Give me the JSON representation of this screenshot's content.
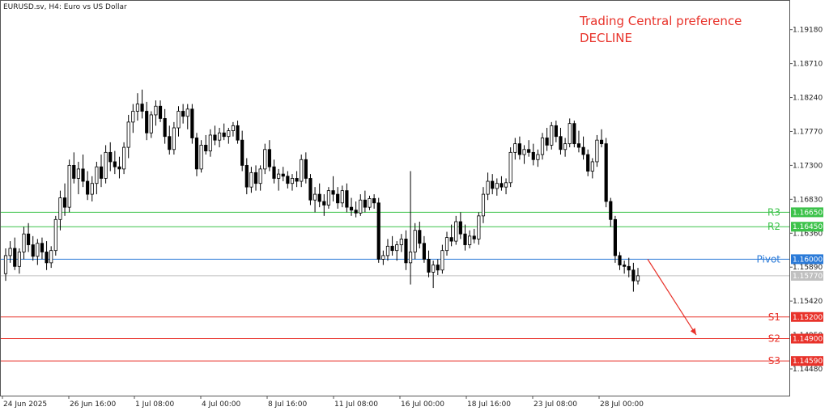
{
  "header": {
    "symbol_info": "EURUSD.sv, H4:  Euro vs US Dollar"
  },
  "preference": {
    "line1": "Trading Central preference",
    "line2": "DECLINE",
    "color": "#e8322a"
  },
  "chart_data": {
    "type": "candlestick",
    "timeframe": "H4",
    "symbol": "EURUSD.sv",
    "ylim": [
      1.1411,
      1.1958
    ],
    "y_ticks": [
      "1.19180",
      "1.18710",
      "1.18240",
      "1.17770",
      "1.17300",
      "1.16830",
      "1.16360",
      "1.15890",
      "1.15420",
      "1.14950",
      "1.14480"
    ],
    "x_ticks": [
      "24 Jun 2025",
      "26 Jun 16:00",
      "1 Jul 08:00",
      "4 Jul 00:00",
      "8 Jul 16:00",
      "11 Jul 08:00",
      "16 Jul 00:00",
      "18 Jul 16:00",
      "23 Jul 08:00",
      "28 Jul 00:00"
    ],
    "current_price": {
      "value": 1.1577,
      "tag": "1.15770",
      "color": "#c0c0c0"
    },
    "levels": [
      {
        "name": "R3",
        "value": 1.1665,
        "tag": "1.16650",
        "color": "#3cc24a"
      },
      {
        "name": "R2",
        "value": 1.1645,
        "tag": "1.16450",
        "color": "#3cc24a"
      },
      {
        "name": "Pivot",
        "value": 1.16,
        "tag": "1.16000",
        "color": "#2a7ad8"
      },
      {
        "name": "S1",
        "value": 1.152,
        "tag": "1.15200",
        "color": "#e8322a"
      },
      {
        "name": "S2",
        "value": 1.149,
        "tag": "1.14900",
        "color": "#e8322a"
      },
      {
        "name": "S3",
        "value": 1.1459,
        "tag": "1.14590",
        "color": "#e8322a"
      }
    ],
    "projection": {
      "from": 1.16,
      "to": 1.1495,
      "color": "#e8322a"
    },
    "ohlc": [
      [
        1.158,
        1.1615,
        1.157,
        1.1605
      ],
      [
        1.1605,
        1.1625,
        1.1595,
        1.1615
      ],
      [
        1.1615,
        1.163,
        1.1585,
        1.159
      ],
      [
        1.159,
        1.1615,
        1.158,
        1.161
      ],
      [
        1.161,
        1.1645,
        1.16,
        1.1635
      ],
      [
        1.1635,
        1.165,
        1.161,
        1.162
      ],
      [
        1.162,
        1.1632,
        1.1598,
        1.1604
      ],
      [
        1.1604,
        1.1628,
        1.1592,
        1.1622
      ],
      [
        1.1622,
        1.163,
        1.16,
        1.161
      ],
      [
        1.161,
        1.1625,
        1.1585,
        1.1595
      ],
      [
        1.1595,
        1.1618,
        1.1588,
        1.1612
      ],
      [
        1.1612,
        1.166,
        1.1605,
        1.1655
      ],
      [
        1.1655,
        1.1695,
        1.164,
        1.1685
      ],
      [
        1.1685,
        1.1705,
        1.166,
        1.1672
      ],
      [
        1.1672,
        1.1738,
        1.1665,
        1.173
      ],
      [
        1.173,
        1.1748,
        1.1705,
        1.1712
      ],
      [
        1.1712,
        1.1735,
        1.169,
        1.1725
      ],
      [
        1.1725,
        1.1745,
        1.17,
        1.1708
      ],
      [
        1.1708,
        1.1722,
        1.1682,
        1.169
      ],
      [
        1.169,
        1.1715,
        1.168,
        1.1705
      ],
      [
        1.1705,
        1.1735,
        1.169,
        1.1728
      ],
      [
        1.1728,
        1.1745,
        1.17,
        1.1712
      ],
      [
        1.1712,
        1.1758,
        1.1705,
        1.1748
      ],
      [
        1.1748,
        1.1762,
        1.1722,
        1.1735
      ],
      [
        1.1735,
        1.175,
        1.1718,
        1.1728
      ],
      [
        1.1728,
        1.1742,
        1.1712,
        1.1725
      ],
      [
        1.1725,
        1.1762,
        1.1718,
        1.1755
      ],
      [
        1.1755,
        1.18,
        1.174,
        1.179
      ],
      [
        1.179,
        1.1815,
        1.1775,
        1.1805
      ],
      [
        1.1805,
        1.183,
        1.1792,
        1.1815
      ],
      [
        1.1815,
        1.1835,
        1.1795,
        1.1805
      ],
      [
        1.1805,
        1.1818,
        1.1765,
        1.1775
      ],
      [
        1.1775,
        1.1805,
        1.1768,
        1.18
      ],
      [
        1.18,
        1.182,
        1.1785,
        1.1812
      ],
      [
        1.1812,
        1.182,
        1.179,
        1.1795
      ],
      [
        1.1795,
        1.1808,
        1.176,
        1.177
      ],
      [
        1.177,
        1.1785,
        1.1745,
        1.1752
      ],
      [
        1.1752,
        1.179,
        1.1745,
        1.1782
      ],
      [
        1.1782,
        1.1812,
        1.177,
        1.1805
      ],
      [
        1.1805,
        1.1815,
        1.1788,
        1.1798
      ],
      [
        1.1798,
        1.1815,
        1.178,
        1.1808
      ],
      [
        1.1808,
        1.1815,
        1.176,
        1.1768
      ],
      [
        1.1768,
        1.1775,
        1.1715,
        1.1725
      ],
      [
        1.1725,
        1.1765,
        1.172,
        1.1758
      ],
      [
        1.1758,
        1.1772,
        1.1745,
        1.175
      ],
      [
        1.175,
        1.178,
        1.1742,
        1.1772
      ],
      [
        1.1772,
        1.1785,
        1.1758,
        1.1765
      ],
      [
        1.1765,
        1.1782,
        1.1755,
        1.1775
      ],
      [
        1.1775,
        1.1788,
        1.1765,
        1.177
      ],
      [
        1.177,
        1.1782,
        1.176,
        1.1778
      ],
      [
        1.1778,
        1.179,
        1.177,
        1.1785
      ],
      [
        1.1785,
        1.1792,
        1.176,
        1.1765
      ],
      [
        1.1765,
        1.1778,
        1.1722,
        1.173
      ],
      [
        1.173,
        1.174,
        1.169,
        1.17
      ],
      [
        1.17,
        1.1728,
        1.1692,
        1.172
      ],
      [
        1.172,
        1.173,
        1.1695,
        1.1705
      ],
      [
        1.1705,
        1.173,
        1.1695,
        1.1725
      ],
      [
        1.1725,
        1.176,
        1.1718,
        1.1752
      ],
      [
        1.1752,
        1.1765,
        1.1722,
        1.1728
      ],
      [
        1.1728,
        1.1738,
        1.1705,
        1.1712
      ],
      [
        1.1712,
        1.1725,
        1.1695,
        1.1718
      ],
      [
        1.1718,
        1.1728,
        1.1708,
        1.1715
      ],
      [
        1.1715,
        1.1722,
        1.1698,
        1.1705
      ],
      [
        1.1705,
        1.1718,
        1.1695,
        1.1712
      ],
      [
        1.1712,
        1.1722,
        1.17,
        1.1708
      ],
      [
        1.1708,
        1.1745,
        1.17,
        1.1738
      ],
      [
        1.1738,
        1.1748,
        1.1705,
        1.1712
      ],
      [
        1.1712,
        1.1718,
        1.1675,
        1.1682
      ],
      [
        1.1682,
        1.17,
        1.1665,
        1.169
      ],
      [
        1.169,
        1.1705,
        1.1672,
        1.168
      ],
      [
        1.168,
        1.169,
        1.166,
        1.1675
      ],
      [
        1.1675,
        1.17,
        1.167,
        1.1695
      ],
      [
        1.1695,
        1.1715,
        1.168,
        1.169
      ],
      [
        1.169,
        1.17,
        1.167,
        1.1678
      ],
      [
        1.1678,
        1.1702,
        1.1672,
        1.1695
      ],
      [
        1.1695,
        1.1705,
        1.1665,
        1.1672
      ],
      [
        1.1672,
        1.1685,
        1.166,
        1.1668
      ],
      [
        1.1668,
        1.168,
        1.1658,
        1.1664
      ],
      [
        1.1664,
        1.169,
        1.166,
        1.1682
      ],
      [
        1.1682,
        1.1695,
        1.1665,
        1.1672
      ],
      [
        1.1672,
        1.1688,
        1.1668,
        1.1684
      ],
      [
        1.1684,
        1.169,
        1.167,
        1.1678
      ],
      [
        1.1678,
        1.1685,
        1.1595,
        1.16
      ],
      [
        1.16,
        1.1612,
        1.1592,
        1.1605
      ],
      [
        1.1605,
        1.1628,
        1.1598,
        1.1618
      ],
      [
        1.1618,
        1.1632,
        1.1605,
        1.1612
      ],
      [
        1.1612,
        1.1625,
        1.1598,
        1.162
      ],
      [
        1.162,
        1.1635,
        1.161,
        1.1628
      ],
      [
        1.1628,
        1.164,
        1.1585,
        1.1595
      ],
      [
        1.1595,
        1.1722,
        1.1565,
        1.161
      ],
      [
        1.161,
        1.165,
        1.16,
        1.164
      ],
      [
        1.164,
        1.1652,
        1.1615,
        1.1622
      ],
      [
        1.1622,
        1.1632,
        1.1595,
        1.16
      ],
      [
        1.16,
        1.1612,
        1.1575,
        1.1582
      ],
      [
        1.1582,
        1.1598,
        1.156,
        1.1592
      ],
      [
        1.1592,
        1.16,
        1.1578,
        1.1585
      ],
      [
        1.1585,
        1.162,
        1.158,
        1.1612
      ],
      [
        1.1612,
        1.1638,
        1.1605,
        1.163
      ],
      [
        1.163,
        1.1648,
        1.1618,
        1.1625
      ],
      [
        1.1625,
        1.166,
        1.162,
        1.1652
      ],
      [
        1.1652,
        1.1665,
        1.1628,
        1.1635
      ],
      [
        1.1635,
        1.1648,
        1.1612,
        1.162
      ],
      [
        1.162,
        1.164,
        1.1615,
        1.1632
      ],
      [
        1.1632,
        1.1642,
        1.1622,
        1.1628
      ],
      [
        1.1628,
        1.1665,
        1.162,
        1.166
      ],
      [
        1.166,
        1.17,
        1.165,
        1.169
      ],
      [
        1.169,
        1.172,
        1.1682,
        1.1708
      ],
      [
        1.1708,
        1.1718,
        1.169,
        1.1698
      ],
      [
        1.1698,
        1.1712,
        1.1688,
        1.1705
      ],
      [
        1.1705,
        1.1715,
        1.1695,
        1.17
      ],
      [
        1.17,
        1.1712,
        1.169,
        1.1706
      ],
      [
        1.1706,
        1.1755,
        1.17,
        1.1748
      ],
      [
        1.1748,
        1.1768,
        1.1738,
        1.176
      ],
      [
        1.176,
        1.177,
        1.1738,
        1.1745
      ],
      [
        1.1745,
        1.1758,
        1.1732,
        1.1752
      ],
      [
        1.1752,
        1.1765,
        1.1742,
        1.1748
      ],
      [
        1.1748,
        1.176,
        1.173,
        1.1738
      ],
      [
        1.1738,
        1.1752,
        1.1728,
        1.1745
      ],
      [
        1.1745,
        1.1775,
        1.1738,
        1.1768
      ],
      [
        1.1768,
        1.1782,
        1.175,
        1.1758
      ],
      [
        1.1758,
        1.179,
        1.1752,
        1.1785
      ],
      [
        1.1785,
        1.1792,
        1.1762,
        1.177
      ],
      [
        1.177,
        1.1782,
        1.1745,
        1.1752
      ],
      [
        1.1752,
        1.1768,
        1.1742,
        1.176
      ],
      [
        1.176,
        1.1795,
        1.1755,
        1.1788
      ],
      [
        1.1788,
        1.1792,
        1.1755,
        1.176
      ],
      [
        1.176,
        1.1778,
        1.1748,
        1.1755
      ],
      [
        1.1755,
        1.177,
        1.1738,
        1.1745
      ],
      [
        1.1745,
        1.1752,
        1.1715,
        1.1722
      ],
      [
        1.1722,
        1.174,
        1.1712,
        1.1735
      ],
      [
        1.1735,
        1.1772,
        1.1728,
        1.1765
      ],
      [
        1.1765,
        1.178,
        1.1755,
        1.176
      ],
      [
        1.176,
        1.1768,
        1.1672,
        1.168
      ],
      [
        1.168,
        1.1685,
        1.1645,
        1.1655
      ],
      [
        1.1655,
        1.166,
        1.1595,
        1.1605
      ],
      [
        1.1605,
        1.161,
        1.1585,
        1.1592
      ],
      [
        1.1592,
        1.1598,
        1.158,
        1.159
      ],
      [
        1.159,
        1.1602,
        1.1575,
        1.1585
      ],
      [
        1.1585,
        1.1595,
        1.1555,
        1.157
      ],
      [
        1.157,
        1.1588,
        1.1565,
        1.1577
      ]
    ]
  }
}
